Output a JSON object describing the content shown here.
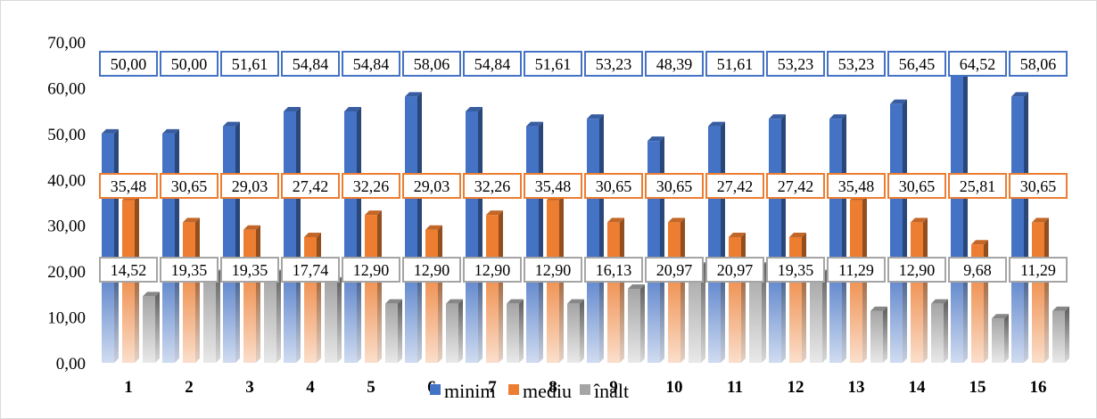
{
  "chart_data": {
    "type": "bar",
    "title": "",
    "xlabel": "",
    "ylabel": "",
    "ylim": [
      0,
      70
    ],
    "y_ticks": [
      "0,00",
      "10,00",
      "20,00",
      "30,00",
      "40,00",
      "50,00",
      "60,00",
      "70,00"
    ],
    "categories": [
      "1",
      "2",
      "3",
      "4",
      "5",
      "6",
      "7",
      "8",
      "9",
      "10",
      "11",
      "12",
      "13",
      "14",
      "15",
      "16"
    ],
    "series": [
      {
        "name": "minim",
        "color": "#4472c4",
        "values": [
          50.0,
          50.0,
          51.61,
          54.84,
          54.84,
          58.06,
          54.84,
          51.61,
          53.23,
          48.39,
          51.61,
          53.23,
          53.23,
          56.45,
          64.52,
          58.06
        ],
        "labels": [
          "50,00",
          "50,00",
          "51,61",
          "54,84",
          "54,84",
          "58,06",
          "54,84",
          "51,61",
          "53,23",
          "48,39",
          "51,61",
          "53,23",
          "53,23",
          "56,45",
          "64,52",
          "58,06"
        ]
      },
      {
        "name": "mediu",
        "color": "#ed7d31",
        "values": [
          35.48,
          30.65,
          29.03,
          27.42,
          32.26,
          29.03,
          32.26,
          35.48,
          30.65,
          30.65,
          27.42,
          27.42,
          35.48,
          30.65,
          25.81,
          30.65
        ],
        "labels": [
          "35,48",
          "30,65",
          "29,03",
          "27,42",
          "32,26",
          "29,03",
          "32,26",
          "35,48",
          "30,65",
          "30,65",
          "27,42",
          "27,42",
          "35,48",
          "30,65",
          "25,81",
          "30,65"
        ]
      },
      {
        "name": "înalt",
        "color": "#a5a5a5",
        "values": [
          14.52,
          19.35,
          19.35,
          17.74,
          12.9,
          12.9,
          12.9,
          12.9,
          16.13,
          20.97,
          20.97,
          19.35,
          11.29,
          12.9,
          9.68,
          11.29
        ],
        "labels": [
          "14,52",
          "19,35",
          "19,35",
          "17,74",
          "12,90",
          "12,90",
          "12,90",
          "12,90",
          "16,13",
          "20,97",
          "20,97",
          "19,35",
          "11,29",
          "12,90",
          "9,68",
          "11,29"
        ]
      }
    ],
    "legend_position": "bottom",
    "grid": false
  }
}
